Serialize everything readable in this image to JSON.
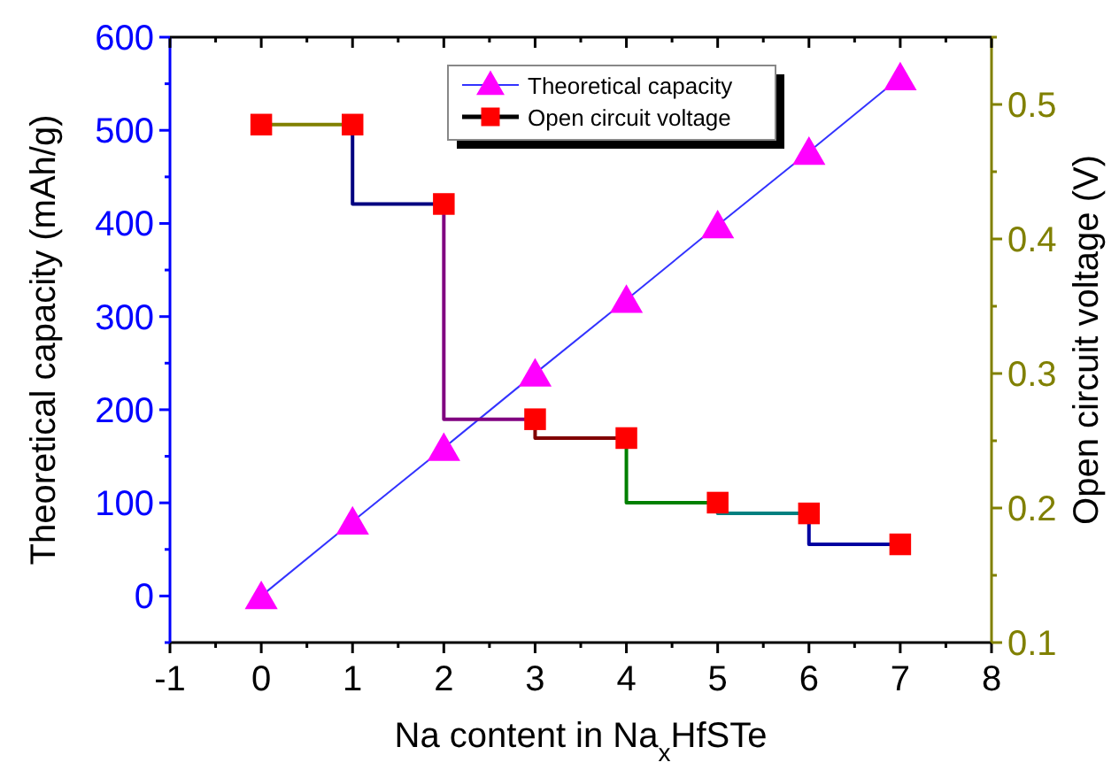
{
  "chart_data": {
    "type": "line",
    "xlabel": "Na content in Na$_{x}$HfSTe",
    "ylabel": "Theoretical capacity (mAh/g)",
    "y2label": "Open circuit voltage (V)",
    "x": [
      0,
      1,
      2,
      3,
      4,
      5,
      6,
      7
    ],
    "xlim": [
      -1,
      8
    ],
    "xticks": [
      -1,
      {
        "value": -0.5,
        "label": null
      },
      0,
      {
        "value": 0.5,
        "label": null
      },
      1,
      {
        "value": 1.5,
        "label": null
      },
      2,
      {
        "value": 2.5,
        "label": null
      },
      3,
      {
        "value": 3.5,
        "label": null
      },
      4,
      {
        "value": 4.5,
        "label": null
      },
      5,
      {
        "value": 5.5,
        "label": null
      },
      6,
      {
        "value": 6.5,
        "label": null
      },
      7,
      {
        "value": 7.5,
        "label": null
      },
      8
    ],
    "ylim": [
      -50,
      600
    ],
    "yticks": [
      {
        "value": -50,
        "label": null
      },
      0,
      {
        "value": 50,
        "label": null
      },
      100,
      {
        "value": 150,
        "label": null
      },
      200,
      {
        "value": 250,
        "label": null
      },
      300,
      {
        "value": 350,
        "label": null
      },
      400,
      {
        "value": 450,
        "label": null
      },
      500,
      {
        "value": 550,
        "label": null
      },
      600
    ],
    "y2lim": [
      0.1,
      0.55
    ],
    "y2ticks": [
      0.1,
      {
        "value": 0.15,
        "label": null
      },
      0.2,
      {
        "value": 0.25,
        "label": null
      },
      0.3,
      {
        "value": 0.35,
        "label": null
      },
      0.4,
      {
        "value": 0.45,
        "label": null
      },
      0.5,
      {
        "value": 0.55,
        "label": null
      }
    ],
    "legend": "top",
    "grid": false,
    "series": [
      {
        "name": "Theoretical capacity",
        "color": "#ff00ff",
        "marker": "triangle",
        "values": [
          0,
          80,
          159,
          239,
          318,
          398,
          477,
          557
        ]
      },
      {
        "name": "Open circuit voltage",
        "type": "step",
        "axis": "y2",
        "color": "#ff0000",
        "marker": "square",
        "colors": [
          "#808000",
          "#808000",
          "#000080",
          "#800080",
          "#800000",
          "#008000",
          "#008080",
          "#0000a0"
        ],
        "values": [
          0.485,
          0.485,
          0.426,
          0.266,
          0.252,
          0.204,
          0.196,
          0.173
        ]
      }
    ]
  }
}
